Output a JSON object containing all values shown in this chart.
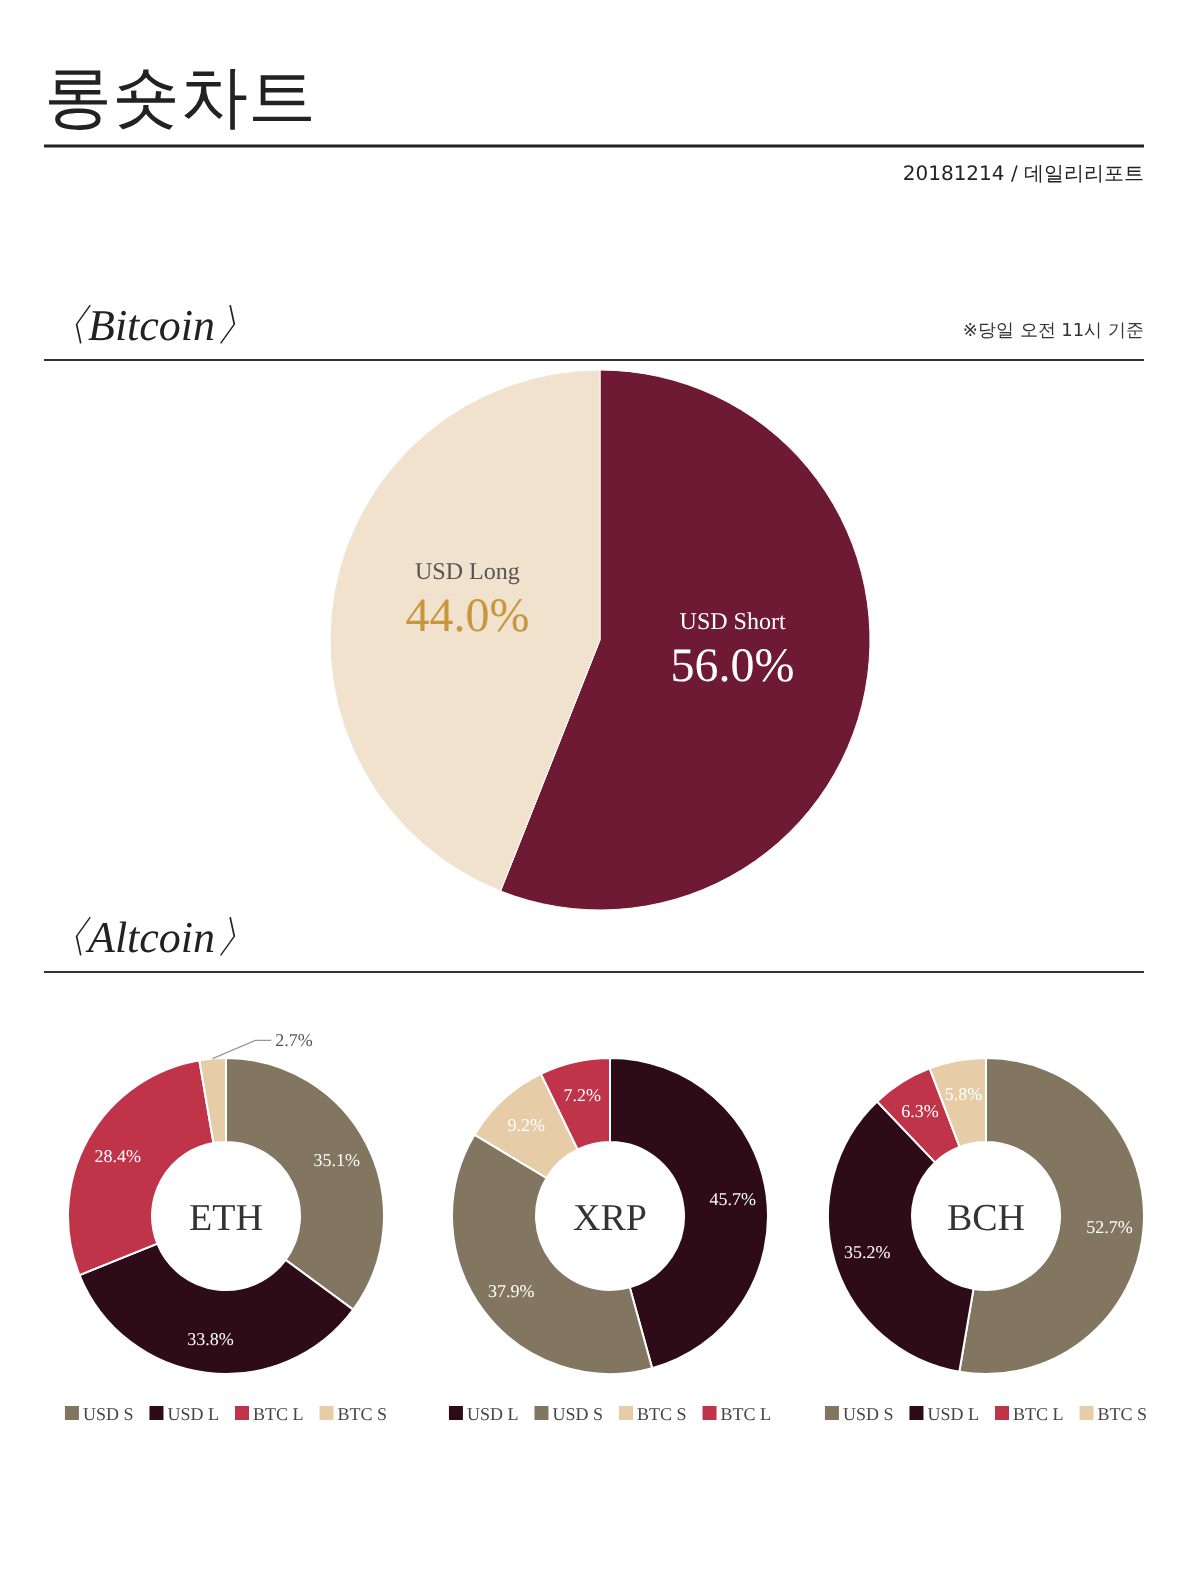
{
  "chart_data": [
    {
      "type": "other",
      "title": "롱숏차트",
      "subtitle": "20181214 / 데일리리포트"
    },
    {
      "type": "pie",
      "title": "〈Bitcoin〉",
      "annotations": [
        "※당일 오전 11시 기준"
      ],
      "categories": [
        "USD Short",
        "USD Long"
      ],
      "values": [
        56.0,
        44.0
      ],
      "value_labels": [
        "56.0%",
        "44.0%"
      ],
      "colors": [
        "#6e1a35",
        "#f0e2cc"
      ]
    },
    {
      "type": "other",
      "title": "〈Altcoin〉"
    },
    {
      "type": "donut",
      "title": "ETH",
      "categories": [
        "USD S",
        "USD L",
        "BTC L",
        "BTC S"
      ],
      "values": [
        35.1,
        33.8,
        28.4,
        2.7
      ],
      "value_labels": [
        "35.1%",
        "33.8%",
        "28.4%",
        "2.7%"
      ],
      "colors": [
        "#837660",
        "#2e0c17",
        "#c0344a",
        "#e6cda8"
      ],
      "legend": "bottom"
    },
    {
      "type": "donut",
      "title": "XRP",
      "categories": [
        "USD L",
        "USD S",
        "BTC S",
        "BTC L"
      ],
      "values": [
        45.7,
        37.9,
        9.2,
        7.2
      ],
      "value_labels": [
        "45.7%",
        "37.9%",
        "9.2%",
        "7.2%"
      ],
      "colors": [
        "#2e0c17",
        "#837660",
        "#e6cda8",
        "#c0344a"
      ],
      "legend": "bottom"
    },
    {
      "type": "donut",
      "title": "BCH",
      "categories": [
        "USD S",
        "USD L",
        "BTC L",
        "BTC S"
      ],
      "values": [
        52.7,
        35.2,
        6.3,
        5.8
      ],
      "value_labels": [
        "52.7%",
        "35.2%",
        "6.3%",
        "5.8%"
      ],
      "colors": [
        "#837660",
        "#2e0c17",
        "#c0344a",
        "#e6cda8"
      ],
      "legend": "bottom"
    }
  ]
}
